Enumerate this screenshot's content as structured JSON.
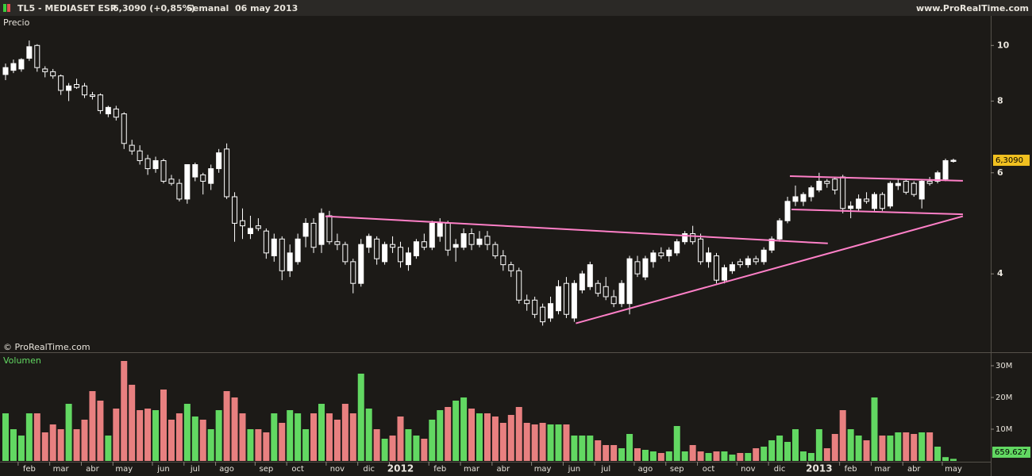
{
  "header": {
    "symbol": "TL5 - MEDIASET ESP",
    "quote": "6,3090 (+0,85%)",
    "period": "Semanal  06 may 2013",
    "site": "www.ProRealTime.com"
  },
  "chart_data": [
    {
      "type": "candlestick",
      "title": "Precio",
      "watermark": "© ProRealTime.com",
      "open": [
        8.9,
        9.05,
        9.1,
        9.5,
        10.0,
        9.1,
        9.0,
        8.85,
        8.35,
        8.55,
        8.5,
        8.2,
        8.2,
        7.6,
        7.75,
        7.6,
        6.7,
        6.55,
        6.35,
        6.1,
        6.3,
        5.85,
        5.75,
        5.4,
        5.9,
        5.95,
        5.75,
        6.1,
        6.6,
        5.45,
        4.95,
        4.7,
        4.85,
        4.75,
        4.3,
        4.6,
        4.05,
        4.2,
        4.65,
        4.9,
        4.5,
        5.05,
        4.55,
        4.5,
        4.2,
        3.85,
        4.45,
        4.6,
        4.2,
        4.5,
        4.45,
        4.15,
        4.3,
        4.55,
        4.45,
        4.65,
        4.9,
        4.45,
        4.45,
        4.7,
        4.5,
        4.65,
        4.5,
        4.3,
        4.15,
        4.05,
        3.6,
        3.6,
        3.5,
        3.35,
        3.45,
        3.85,
        3.35,
        3.75,
        3.8,
        3.85,
        3.8,
        3.65,
        3.55,
        3.55,
        4.2,
        3.95,
        4.2,
        4.35,
        4.3,
        4.35,
        4.55,
        4.7,
        4.6,
        4.2,
        4.3,
        3.9,
        4.05,
        4.2,
        4.15,
        4.25,
        4.2,
        4.4,
        4.6,
        4.95,
        5.35,
        5.35,
        5.45,
        5.6,
        5.8,
        5.85,
        5.9,
        5.2,
        5.2,
        5.4,
        5.2,
        5.5,
        5.25,
        5.7,
        5.8,
        5.75,
        5.4,
        5.8,
        5.8,
        5.85,
        6.28
      ],
      "high": [
        9.3,
        9.45,
        9.5,
        10.2,
        10.05,
        9.2,
        9.1,
        8.9,
        8.6,
        8.75,
        8.6,
        8.3,
        8.25,
        7.85,
        7.85,
        7.65,
        6.85,
        6.7,
        6.45,
        6.4,
        6.35,
        5.95,
        5.85,
        6.2,
        6.25,
        6.0,
        6.2,
        6.6,
        6.75,
        5.55,
        5.2,
        5.05,
        5.0,
        4.8,
        4.7,
        4.65,
        4.5,
        4.7,
        5.0,
        5.0,
        5.2,
        5.15,
        4.7,
        4.55,
        4.25,
        4.6,
        4.7,
        4.65,
        4.55,
        4.65,
        4.55,
        4.45,
        4.6,
        4.7,
        4.95,
        5.0,
        4.95,
        4.6,
        4.8,
        4.8,
        4.75,
        4.75,
        4.55,
        4.4,
        4.2,
        4.1,
        3.68,
        3.65,
        3.55,
        3.65,
        3.9,
        3.95,
        3.9,
        4.05,
        4.2,
        3.9,
        3.95,
        3.75,
        3.9,
        4.3,
        4.3,
        4.3,
        4.4,
        4.45,
        4.45,
        4.6,
        4.75,
        4.85,
        4.7,
        4.45,
        4.35,
        4.15,
        4.2,
        4.25,
        4.3,
        4.3,
        4.45,
        4.65,
        5.0,
        5.45,
        5.7,
        5.55,
        5.7,
        6.0,
        5.85,
        5.9,
        5.95,
        5.35,
        5.5,
        5.55,
        5.55,
        5.55,
        5.8,
        5.85,
        5.85,
        5.8,
        5.85,
        5.9,
        6.05,
        6.35,
        6.35
      ],
      "low": [
        8.7,
        8.95,
        9.0,
        9.4,
        9.0,
        8.8,
        8.75,
        8.2,
        8.0,
        8.4,
        8.1,
        8.05,
        7.6,
        7.5,
        7.4,
        6.6,
        6.45,
        6.2,
        5.95,
        6.0,
        5.75,
        5.7,
        5.35,
        5.3,
        5.8,
        5.5,
        5.6,
        6.0,
        5.4,
        4.55,
        4.6,
        4.6,
        4.75,
        4.25,
        4.2,
        3.9,
        3.95,
        4.15,
        4.45,
        4.35,
        4.35,
        4.5,
        4.4,
        4.15,
        3.7,
        3.8,
        4.35,
        4.15,
        4.15,
        4.35,
        4.1,
        4.05,
        4.25,
        4.4,
        4.4,
        4.55,
        4.3,
        4.2,
        4.4,
        4.4,
        4.45,
        4.4,
        4.25,
        4.05,
        3.95,
        3.55,
        3.45,
        3.35,
        3.25,
        3.3,
        3.4,
        3.35,
        3.3,
        3.7,
        3.75,
        3.65,
        3.6,
        3.5,
        3.5,
        3.4,
        3.95,
        3.9,
        4.1,
        4.25,
        4.2,
        4.3,
        4.5,
        4.5,
        4.15,
        4.1,
        3.85,
        3.85,
        4.0,
        4.1,
        4.1,
        4.15,
        4.15,
        4.35,
        4.55,
        4.9,
        5.25,
        5.25,
        5.35,
        5.55,
        5.65,
        5.5,
        5.1,
        5.0,
        5.15,
        5.3,
        5.15,
        5.15,
        5.2,
        5.6,
        5.5,
        5.45,
        5.2,
        5.7,
        5.75,
        5.8,
        6.25
      ],
      "close": [
        9.15,
        9.3,
        9.45,
        9.95,
        9.15,
        9.0,
        8.85,
        8.35,
        8.5,
        8.45,
        8.2,
        8.15,
        7.7,
        7.8,
        7.5,
        6.75,
        6.55,
        6.3,
        6.1,
        6.3,
        5.8,
        5.75,
        5.4,
        6.2,
        6.2,
        5.8,
        6.1,
        6.5,
        5.45,
        4.9,
        4.85,
        4.8,
        4.8,
        4.35,
        4.6,
        4.05,
        4.35,
        4.6,
        4.9,
        4.45,
        5.1,
        4.55,
        4.5,
        4.2,
        3.85,
        4.5,
        4.65,
        4.25,
        4.5,
        4.45,
        4.2,
        4.35,
        4.55,
        4.45,
        4.9,
        4.9,
        4.4,
        4.5,
        4.7,
        4.5,
        4.6,
        4.5,
        4.3,
        4.15,
        4.05,
        3.6,
        3.55,
        3.4,
        3.3,
        3.55,
        3.8,
        3.4,
        3.85,
        4.0,
        4.15,
        3.7,
        3.65,
        3.55,
        3.85,
        4.25,
        4.0,
        4.25,
        4.35,
        4.3,
        4.4,
        4.55,
        4.7,
        4.55,
        4.2,
        4.35,
        3.9,
        4.1,
        4.15,
        4.15,
        4.25,
        4.2,
        4.4,
        4.6,
        4.95,
        5.35,
        5.45,
        5.5,
        5.65,
        5.8,
        5.75,
        5.6,
        5.2,
        5.25,
        5.4,
        5.35,
        5.5,
        5.2,
        5.75,
        5.75,
        5.55,
        5.5,
        5.8,
        5.75,
        6.0,
        6.3,
        6.309
      ],
      "last_label": "6,3090",
      "ylim": [
        2.93,
        11.26
      ],
      "yticks": [
        4,
        6,
        8,
        10
      ],
      "log_scale": true,
      "up_color": "#ffffff",
      "down_color": "#1c1a17",
      "wick_color": "#ffffff",
      "label_color": "#f0c020",
      "trendline_color": "#ff80c8",
      "trendlines": [
        {
          "x": [
            40.5,
            104.1
          ],
          "y": [
            5.04,
            4.52
          ]
        },
        {
          "x": [
            72.2,
            121.2
          ],
          "y": [
            3.28,
            5.04
          ]
        },
        {
          "x": [
            99.3,
            121.2
          ],
          "y": [
            5.92,
            5.81
          ]
        },
        {
          "x": [
            99.5,
            121.2
          ],
          "y": [
            5.18,
            5.08
          ]
        }
      ]
    },
    {
      "type": "bar",
      "title": "Volumen",
      "categories": [
        null,
        null,
        null,
        "feb",
        null,
        null,
        null,
        "mar",
        null,
        null,
        null,
        "abr",
        null,
        null,
        null,
        "may",
        null,
        null,
        null,
        null,
        "jun",
        null,
        null,
        null,
        "jul",
        null,
        null,
        null,
        "ago",
        null,
        null,
        null,
        null,
        "sep",
        null,
        null,
        null,
        "oct",
        null,
        null,
        null,
        null,
        "nov",
        null,
        null,
        null,
        "dic",
        null,
        null,
        null,
        "2012",
        null,
        null,
        null,
        null,
        "feb",
        null,
        null,
        null,
        "mar",
        null,
        null,
        null,
        "abr",
        null,
        null,
        null,
        null,
        "may",
        null,
        null,
        null,
        "jun",
        null,
        null,
        null,
        "jul",
        null,
        null,
        null,
        null,
        "ago",
        null,
        null,
        null,
        "sep",
        null,
        null,
        null,
        "oct",
        null,
        null,
        null,
        null,
        "nov",
        null,
        null,
        null,
        "dic",
        null,
        null,
        null,
        null,
        "2013",
        null,
        null,
        null,
        "feb",
        null,
        null,
        null,
        "mar",
        null,
        null,
        null,
        "abr",
        null,
        null,
        null,
        null,
        "may"
      ],
      "values": [
        15000000,
        10000000,
        8000000,
        15000000,
        15000000,
        9000000,
        11500000,
        10000000,
        18000000,
        10000000,
        13000000,
        22000000,
        19000000,
        8000000,
        16500000,
        31500000,
        24000000,
        16000000,
        16500000,
        16000000,
        22500000,
        13000000,
        15000000,
        18000000,
        14000000,
        13000000,
        10000000,
        16000000,
        22000000,
        20000000,
        15000000,
        10000000,
        10000000,
        9000000,
        15000000,
        12000000,
        16000000,
        15000000,
        10000000,
        15000000,
        18000000,
        15000000,
        13000000,
        18000000,
        15000000,
        27500000,
        16500000,
        10000000,
        7000000,
        8000000,
        14000000,
        10000000,
        8000000,
        7000000,
        13000000,
        16000000,
        17000000,
        19000000,
        20000000,
        16500000,
        15000000,
        15000000,
        14000000,
        12000000,
        14500000,
        17000000,
        12000000,
        11500000,
        12000000,
        11500000,
        11500000,
        11500000,
        8000000,
        8000000,
        8000000,
        6500000,
        5000000,
        5000000,
        4000000,
        8500000,
        4000000,
        3500000,
        3000000,
        2500000,
        3000000,
        11000000,
        3000000,
        5000000,
        3000000,
        2500000,
        3000000,
        3000000,
        2000000,
        2500000,
        2500000,
        4000000,
        4500000,
        6500000,
        8000000,
        6000000,
        10000000,
        3000000,
        2500000,
        10000000,
        4000000,
        8500000,
        16000000,
        10000000,
        8000000,
        6500000,
        20000000,
        8000000,
        8000000,
        9000000,
        9000000,
        8500000,
        9000000,
        9000000,
        4500000,
        1200000,
        659627
      ],
      "last_label": "659.627",
      "ylim": [
        0,
        33500000
      ],
      "yticks": [
        {
          "value": 10000000,
          "label": "10M"
        },
        {
          "value": 20000000,
          "label": "20M"
        },
        {
          "value": 30000000,
          "label": "30M"
        }
      ],
      "up_color": "#62d862",
      "down_color": "#e88080",
      "label_color": "#62d862"
    }
  ]
}
